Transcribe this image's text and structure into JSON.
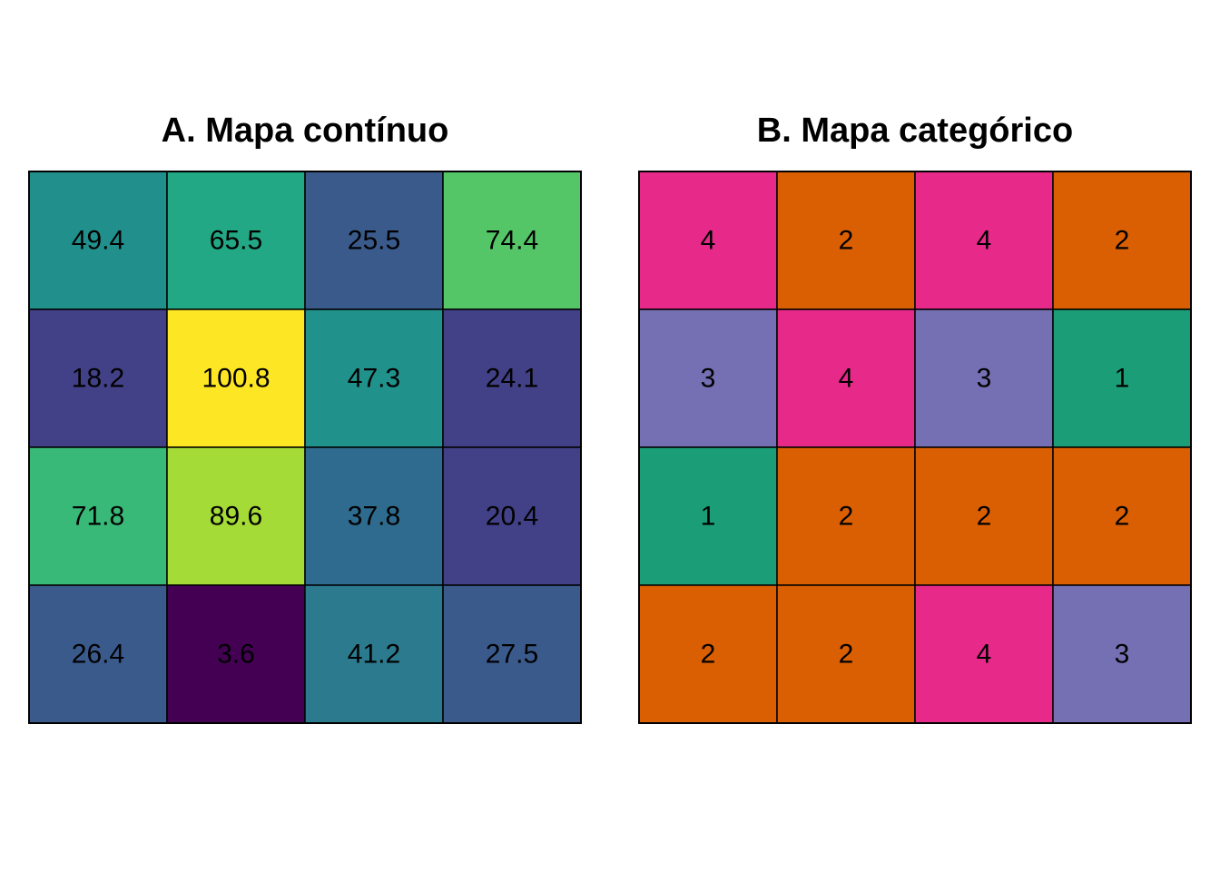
{
  "chart_data": [
    {
      "type": "heatmap",
      "title": "A. Mapa contínuo",
      "rows": 4,
      "cols": 4,
      "values": [
        [
          49.4,
          65.5,
          25.5,
          74.4
        ],
        [
          18.2,
          100.8,
          47.3,
          24.1
        ],
        [
          71.8,
          89.6,
          37.8,
          20.4
        ],
        [
          26.4,
          3.6,
          41.2,
          27.5
        ]
      ],
      "labels": [
        [
          "49.4",
          "65.5",
          "25.5",
          "74.4"
        ],
        [
          "18.2",
          "100.8",
          "47.3",
          "24.1"
        ],
        [
          "71.8",
          "89.6",
          "37.8",
          "20.4"
        ],
        [
          "26.4",
          "3.6",
          "41.2",
          "27.5"
        ]
      ],
      "colors": [
        [
          "#21908c",
          "#22a884",
          "#3a5a8c",
          "#55c667"
        ],
        [
          "#424086",
          "#fde725",
          "#21918c",
          "#424086"
        ],
        [
          "#38b977",
          "#a5db36",
          "#2f6b8e",
          "#424086"
        ],
        [
          "#3a5a8c",
          "#440154",
          "#2c7a8e",
          "#3a5a8c"
        ]
      ],
      "colormap": "viridis"
    },
    {
      "type": "heatmap",
      "title": "B. Mapa categórico",
      "rows": 4,
      "cols": 4,
      "values": [
        [
          4,
          2,
          4,
          2
        ],
        [
          3,
          4,
          3,
          1
        ],
        [
          1,
          2,
          2,
          2
        ],
        [
          2,
          2,
          4,
          3
        ]
      ],
      "labels": [
        [
          "4",
          "2",
          "4",
          "2"
        ],
        [
          "3",
          "4",
          "3",
          "1"
        ],
        [
          "1",
          "2",
          "2",
          "2"
        ],
        [
          "2",
          "2",
          "4",
          "3"
        ]
      ],
      "category_colors": {
        "1": "#1b9e77",
        "2": "#d95f02",
        "3": "#7570b3",
        "4": "#e7298a"
      }
    }
  ]
}
